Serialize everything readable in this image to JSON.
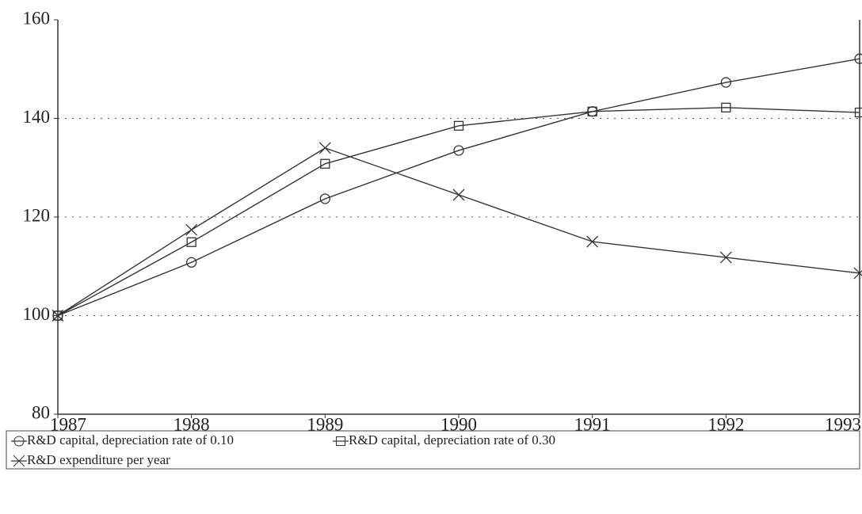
{
  "chart_data": {
    "type": "line",
    "x": [
      1987,
      1988,
      1989,
      1990,
      1991,
      1992,
      1993
    ],
    "xlim": [
      1987,
      1993
    ],
    "xticks": [
      1987,
      1988,
      1989,
      1990,
      1991,
      1992,
      1993
    ],
    "ylim": [
      80,
      160
    ],
    "yticks": [
      80,
      100,
      120,
      140,
      160
    ],
    "grid": true,
    "series": [
      {
        "name": "R&D capital, depreciation rate of 0.10",
        "color": "#333333",
        "marker": "circle",
        "values": [
          100,
          110.8,
          123.7,
          133.5,
          141.4,
          147.3,
          152.1
        ]
      },
      {
        "name": "R&D capital, depreciation rate of 0.30",
        "color": "#333333",
        "marker": "square",
        "values": [
          100,
          114.9,
          130.8,
          138.5,
          141.4,
          142.2,
          141.2
        ]
      },
      {
        "name": "R&D expenditure per year",
        "color": "#333333",
        "marker": "x",
        "values": [
          100,
          117.4,
          134,
          124.5,
          115,
          111.8,
          108.6
        ]
      }
    ]
  }
}
